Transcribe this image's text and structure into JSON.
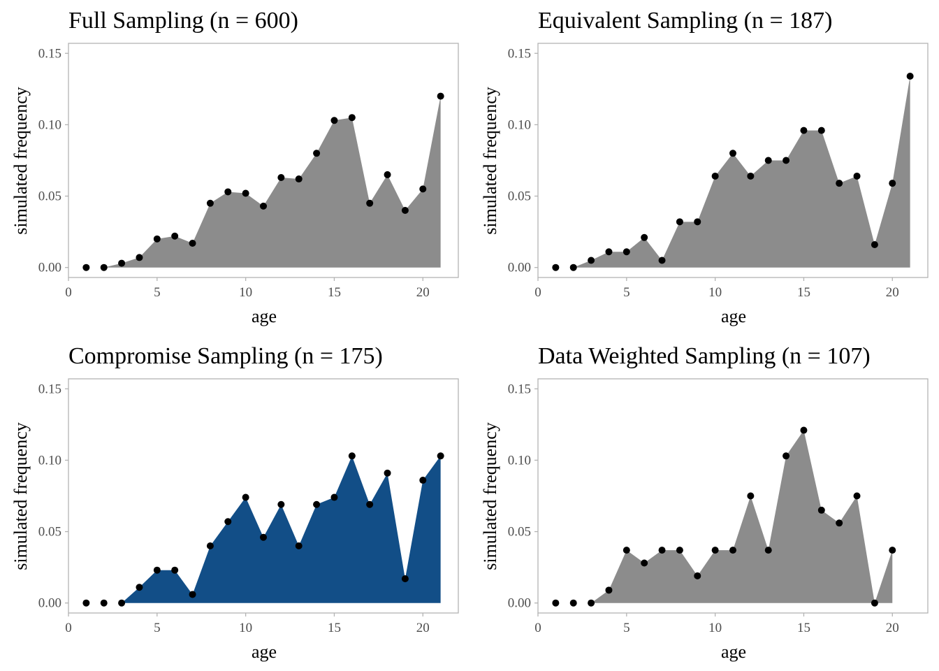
{
  "chart_data": [
    {
      "type": "area",
      "title": "Full Sampling (n = 600)",
      "xlabel": "age",
      "ylabel": "simulated frequency",
      "xlim": [
        0,
        22
      ],
      "ylim": [
        -0.007,
        0.157
      ],
      "xticks": [
        0,
        5,
        10,
        15,
        20
      ],
      "yticks": [
        0.0,
        0.05,
        0.1,
        0.15
      ],
      "ytick_labels": [
        "0.00",
        "0.05",
        "0.10",
        "0.15"
      ],
      "fill_color": "#8c8c8c",
      "point_color": "#000000",
      "grid": false,
      "x": [
        1,
        2,
        3,
        4,
        5,
        6,
        7,
        8,
        9,
        10,
        11,
        12,
        13,
        14,
        15,
        16,
        17,
        18,
        19,
        20,
        21
      ],
      "y": [
        0.0,
        0.0,
        0.003,
        0.007,
        0.02,
        0.022,
        0.017,
        0.045,
        0.053,
        0.052,
        0.043,
        0.063,
        0.062,
        0.08,
        0.103,
        0.105,
        0.045,
        0.065,
        0.04,
        0.055,
        0.12
      ]
    },
    {
      "type": "area",
      "title": "Equivalent Sampling (n = 187)",
      "xlabel": "age",
      "ylabel": "simulated frequency",
      "xlim": [
        0,
        22
      ],
      "ylim": [
        -0.007,
        0.157
      ],
      "xticks": [
        0,
        5,
        10,
        15,
        20
      ],
      "yticks": [
        0.0,
        0.05,
        0.1,
        0.15
      ],
      "ytick_labels": [
        "0.00",
        "0.05",
        "0.10",
        "0.15"
      ],
      "fill_color": "#8c8c8c",
      "point_color": "#000000",
      "grid": false,
      "x": [
        1,
        2,
        3,
        4,
        5,
        6,
        7,
        8,
        9,
        10,
        11,
        12,
        13,
        14,
        15,
        16,
        17,
        18,
        19,
        20,
        21
      ],
      "y": [
        0.0,
        0.0,
        0.005,
        0.011,
        0.011,
        0.021,
        0.005,
        0.032,
        0.032,
        0.064,
        0.08,
        0.064,
        0.075,
        0.075,
        0.096,
        0.096,
        0.059,
        0.064,
        0.016,
        0.059,
        0.134
      ]
    },
    {
      "type": "area",
      "title": "Compromise Sampling (n = 175)",
      "xlabel": "age",
      "ylabel": "simulated frequency",
      "xlim": [
        0,
        22
      ],
      "ylim": [
        -0.007,
        0.157
      ],
      "xticks": [
        0,
        5,
        10,
        15,
        20
      ],
      "yticks": [
        0.0,
        0.05,
        0.1,
        0.15
      ],
      "ytick_labels": [
        "0.00",
        "0.05",
        "0.10",
        "0.15"
      ],
      "fill_color": "#124e87",
      "point_color": "#000000",
      "grid": false,
      "x": [
        1,
        2,
        3,
        4,
        5,
        6,
        7,
        8,
        9,
        10,
        11,
        12,
        13,
        14,
        15,
        16,
        17,
        18,
        19,
        20,
        21
      ],
      "y": [
        0.0,
        0.0,
        0.0,
        0.011,
        0.023,
        0.023,
        0.006,
        0.04,
        0.057,
        0.074,
        0.046,
        0.069,
        0.04,
        0.069,
        0.074,
        0.103,
        0.069,
        0.091,
        0.017,
        0.086,
        0.103
      ]
    },
    {
      "type": "area",
      "title": "Data Weighted Sampling (n = 107)",
      "xlabel": "age",
      "ylabel": "simulated frequency",
      "xlim": [
        0,
        22
      ],
      "ylim": [
        -0.007,
        0.157
      ],
      "xticks": [
        0,
        5,
        10,
        15,
        20
      ],
      "yticks": [
        0.0,
        0.05,
        0.1,
        0.15
      ],
      "ytick_labels": [
        "0.00",
        "0.05",
        "0.10",
        "0.15"
      ],
      "fill_color": "#8c8c8c",
      "point_color": "#000000",
      "grid": false,
      "x": [
        1,
        2,
        3,
        4,
        5,
        6,
        7,
        8,
        9,
        10,
        11,
        12,
        13,
        14,
        15,
        16,
        17,
        18,
        19,
        20
      ],
      "y": [
        0.0,
        0.0,
        0.0,
        0.009,
        0.037,
        0.028,
        0.037,
        0.037,
        0.019,
        0.037,
        0.037,
        0.075,
        0.037,
        0.103,
        0.121,
        0.065,
        0.056,
        0.075,
        0.0,
        0.037
      ]
    }
  ]
}
